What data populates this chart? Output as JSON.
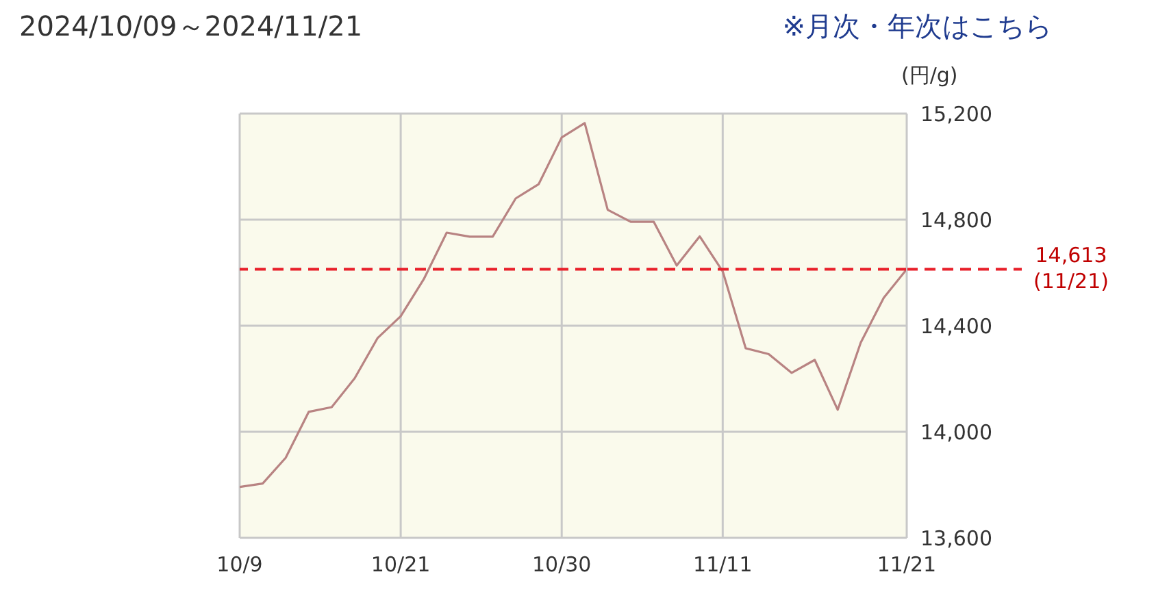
{
  "chart_data": {
    "type": "line",
    "title": "2024/10/09～2024/11/21",
    "annotations": [
      "※月次・年次はこちら"
    ],
    "ylabel": "(円/g)",
    "categories": [
      "10/9",
      null,
      null,
      null,
      null,
      null,
      null,
      "10/21",
      null,
      null,
      null,
      null,
      null,
      null,
      "10/30",
      null,
      null,
      null,
      null,
      null,
      null,
      "11/11",
      null,
      null,
      null,
      null,
      null,
      null,
      null,
      "11/21"
    ],
    "series": [
      {
        "color": "#b88382",
        "values": [
          13792,
          13805,
          13902,
          14075,
          14093,
          14202,
          14354,
          14436,
          14575,
          14751,
          14736,
          14736,
          14880,
          14934,
          15110,
          15164,
          14837,
          14792,
          14792,
          14627,
          14737,
          14605,
          14315,
          14293,
          14222,
          14271,
          14083,
          14336,
          14505,
          14613
        ]
      }
    ],
    "ylim": [
      13600,
      15200
    ],
    "yticks": [
      {
        "value": 13600,
        "label": "13,600"
      },
      {
        "value": 14000,
        "label": "14,000"
      },
      {
        "value": 14400,
        "label": "14,400"
      },
      {
        "value": 14800,
        "label": "14,800"
      },
      {
        "value": 15200,
        "label": "15,200"
      }
    ],
    "grid": true,
    "marker": "none",
    "line_style": "solid",
    "ref_lines": [
      {
        "axis": "y",
        "value": 14613,
        "label": "14,613\n(11/21)",
        "color": "#e8202a",
        "line_style": "dashed"
      }
    ]
  }
}
